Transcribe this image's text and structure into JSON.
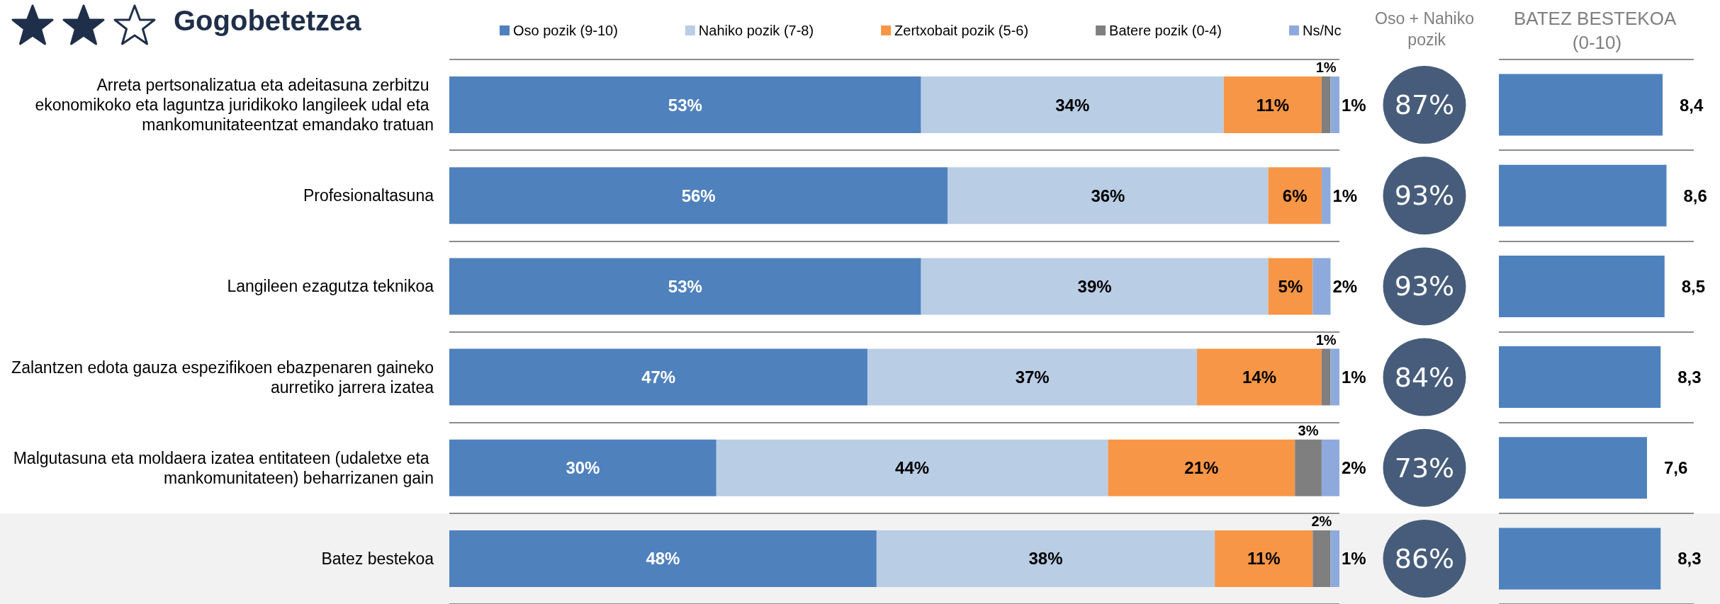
{
  "chart_data": [
    {
      "type": "bar",
      "orientation": "horizontal",
      "stacked": true,
      "title": "Gogobetetzea",
      "categories": [
        "Arreta pertsonalizatua eta adeitasuna zerbitzu ekonomikoko eta laguntza juridikoko langileek udal eta mankomunitateentzat emandako tratuan",
        "Profesionaltasuna",
        "Langileen ezagutza teknikoa",
        "Zalantzen edota gauza espezifikoen ebazpenaren gaineko aurretiko jarrera izatea",
        "Malgutasuna eta moldaera izatea entitateen (udaletxe eta mankomunitateen) beharrizanen gain",
        "Batez bestekoa"
      ],
      "series": [
        {
          "name": "Oso pozik (9-10)",
          "color": "#4f81bd",
          "values": [
            53,
            56,
            53,
            47,
            30,
            48
          ],
          "value_labels": [
            "53%",
            "56%",
            "53%",
            "47%",
            "30%",
            "48%"
          ]
        },
        {
          "name": "Nahiko pozik (7-8)",
          "color": "#b9cde5",
          "values": [
            34,
            36,
            39,
            37,
            44,
            38
          ],
          "value_labels": [
            "34%",
            "36%",
            "39%",
            "37%",
            "44%",
            "38%"
          ]
        },
        {
          "name": "Zertxobait pozik (5-6)",
          "color": "#f79646",
          "values": [
            11,
            6,
            5,
            14,
            21,
            11
          ],
          "value_labels": [
            "11%",
            "6%",
            "5%",
            "14%",
            "21%",
            "11%"
          ]
        },
        {
          "name": "Batere pozik (0-4)",
          "color": "#7f7f7f",
          "values": [
            1,
            null,
            null,
            1,
            3,
            2
          ],
          "value_labels": [
            "1%",
            null,
            null,
            "1%",
            "3%",
            "2%"
          ]
        },
        {
          "name": "Ns/Nc",
          "color": "#8eaadc",
          "values": [
            1,
            1,
            2,
            1,
            2,
            1
          ],
          "value_labels": [
            "1%",
            "1%",
            "2%",
            "1%",
            "2%",
            "1%"
          ]
        }
      ],
      "xlim": [
        0,
        100
      ],
      "tick_labels": "y",
      "grid": "y",
      "legend": "top",
      "bands": [
        {
          "axis": "y",
          "from": "Batez bestekoa",
          "to": "Batez bestekoa",
          "color": "#f2f2f2"
        }
      ]
    },
    {
      "type": "other",
      "title": "Oso + Nahiko pozik",
      "categories": [
        null,
        null,
        null,
        null,
        null,
        null
      ],
      "values": [
        87,
        93,
        93,
        84,
        73,
        86
      ],
      "value_labels": [
        "87%",
        "93%",
        "93%",
        "84%",
        "73%",
        "86%"
      ],
      "color": "#465c7a"
    },
    {
      "type": "bar",
      "orientation": "horizontal",
      "title": "BATEZ BESTEKOA (0-10)",
      "categories": [
        null,
        null,
        null,
        null,
        null,
        null
      ],
      "values": [
        8.4,
        8.6,
        8.5,
        8.3,
        7.6,
        8.3
      ],
      "value_labels": [
        "8,4",
        "8,6",
        "8,5",
        "8,3",
        "7,6",
        "8,3"
      ],
      "color": "#4f81bd",
      "xlim": [
        0,
        10
      ],
      "tick_labels": false,
      "grid": "y"
    }
  ]
}
